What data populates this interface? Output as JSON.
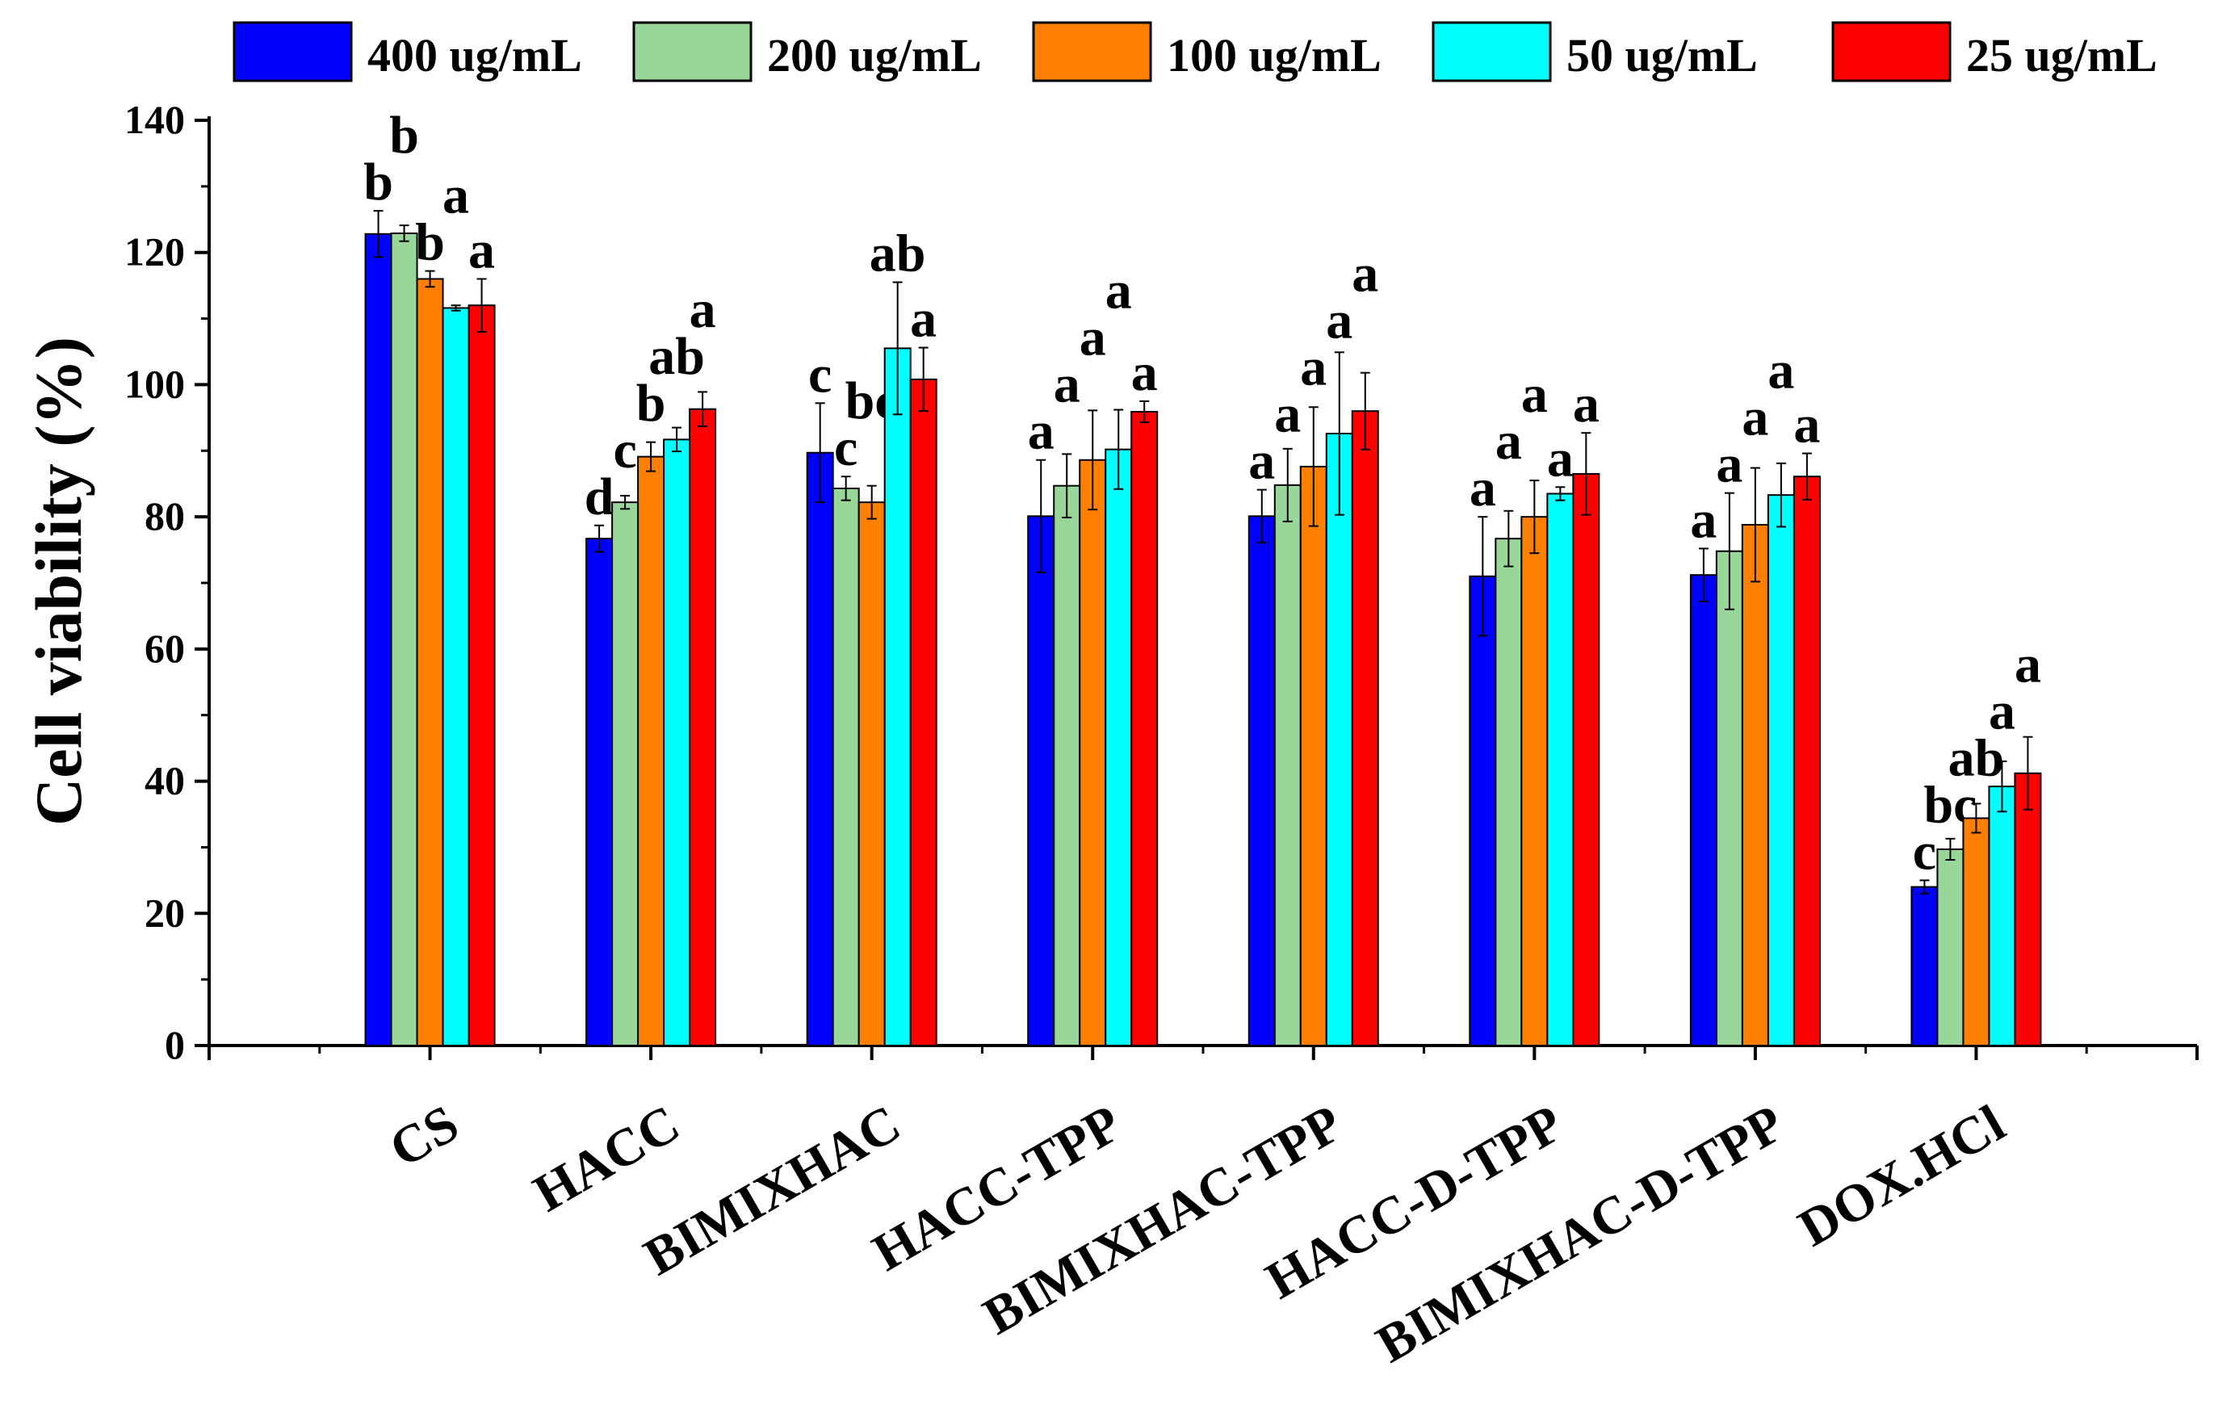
{
  "chart_data": {
    "type": "bar",
    "title": "",
    "xlabel": "",
    "ylabel": "Cell viability (%)",
    "ylim": [
      0,
      140
    ],
    "yticks": [
      0,
      20,
      40,
      60,
      80,
      100,
      120,
      140
    ],
    "grid": false,
    "legend_position": "top",
    "categories": [
      "CS",
      "HACC",
      "BIMIXHAC",
      "HACC-TPP",
      "BIMIXHAC-TPP",
      "HACC-D-TPP",
      "BIMIXHAC-D-TPP",
      "DOX.HCl"
    ],
    "series": [
      {
        "name": "400 ug/mL",
        "color": "#0000ff",
        "values": [
          122.8,
          76.7,
          89.7,
          80.1,
          80.1,
          71.0,
          71.2,
          24.0
        ],
        "errors": [
          3.5,
          2.0,
          7.5,
          8.5,
          4.0,
          9.0,
          4.0,
          1.0
        ],
        "letters": [
          "b",
          "d",
          "c",
          "a",
          "a",
          "a",
          "a",
          "c"
        ]
      },
      {
        "name": "200 ug/mL",
        "color": "#99d699",
        "values": [
          122.9,
          82.2,
          84.3,
          84.7,
          84.8,
          76.7,
          74.8,
          29.7
        ],
        "errors": [
          1.2,
          1.0,
          1.8,
          4.8,
          5.5,
          4.2,
          8.8,
          1.6
        ],
        "letters": [
          "b",
          "c",
          "c",
          "a",
          "a",
          "a",
          "a",
          "bc"
        ]
      },
      {
        "name": "100 ug/mL",
        "color": "#ff8000",
        "values": [
          116.0,
          89.1,
          82.2,
          88.6,
          87.6,
          80.0,
          78.8,
          34.4
        ],
        "errors": [
          1.2,
          2.2,
          2.5,
          7.5,
          9.0,
          5.5,
          8.6,
          2.2
        ],
        "letters": [
          "b",
          "b",
          "bc",
          "a",
          "a",
          "a",
          "a",
          "ab"
        ]
      },
      {
        "name": "50 ug/mL",
        "color": "#00ffff",
        "values": [
          111.6,
          91.7,
          105.5,
          90.2,
          92.6,
          83.5,
          83.3,
          39.2
        ],
        "errors": [
          0.4,
          1.8,
          10.0,
          6.0,
          12.3,
          1.0,
          4.8,
          3.8
        ],
        "letters": [
          "a",
          "ab",
          "ab",
          "a",
          "a",
          "a",
          "a",
          "a"
        ]
      },
      {
        "name": "25 ug/mL",
        "color": "#ff0000",
        "values": [
          112.0,
          96.3,
          100.8,
          95.9,
          96.0,
          86.5,
          86.1,
          41.2
        ],
        "errors": [
          4.0,
          2.6,
          4.8,
          1.6,
          5.8,
          6.2,
          3.5,
          5.5
        ],
        "letters": [
          "a",
          "a",
          "a",
          "a",
          "a",
          "a",
          "a",
          "a"
        ]
      }
    ]
  }
}
